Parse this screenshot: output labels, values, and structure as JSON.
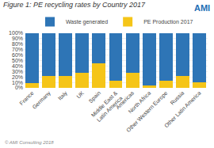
{
  "chart_data": {
    "type": "bar",
    "title": "Figure 1: PE recycling rates by Country 2017",
    "categories": [
      "France",
      "Germany",
      "Italy",
      "UK",
      "Spain",
      "Middle East &\nLatin America",
      "Americas",
      "North Africa",
      "Other Western Europe",
      "Russia",
      "Other Latin America"
    ],
    "series": [
      {
        "name": "PE Production 2017",
        "color": "#f5c518",
        "values": [
          8,
          22,
          22,
          27,
          45,
          13,
          27,
          5,
          13,
          22,
          10
        ]
      },
      {
        "name": "Waste generated",
        "color": "#2e75b6",
        "values": [
          92,
          78,
          78,
          73,
          55,
          87,
          73,
          95,
          87,
          78,
          90
        ]
      }
    ],
    "stacked": true,
    "ylim": [
      0,
      100
    ],
    "yticks": [
      {
        "value": 0,
        "label": "0%"
      },
      {
        "value": 10,
        "label": "10%"
      },
      {
        "value": 20,
        "label": "20%"
      },
      {
        "value": 30,
        "label": "30%"
      },
      {
        "value": 40,
        "label": "40%"
      },
      {
        "value": 50,
        "label": "50%"
      },
      {
        "value": 60,
        "label": "60%"
      },
      {
        "value": 70,
        "label": "70%"
      },
      {
        "value": 80,
        "label": "80%"
      },
      {
        "value": 90,
        "label": "90%"
      },
      {
        "value": 100,
        "label": "100%"
      }
    ],
    "grid": true,
    "legend": "top",
    "annotations": [
      {
        "text": "AMI",
        "color": "#1f6eb5"
      },
      {
        "text": "© AMI Consulting 2018"
      }
    ]
  }
}
